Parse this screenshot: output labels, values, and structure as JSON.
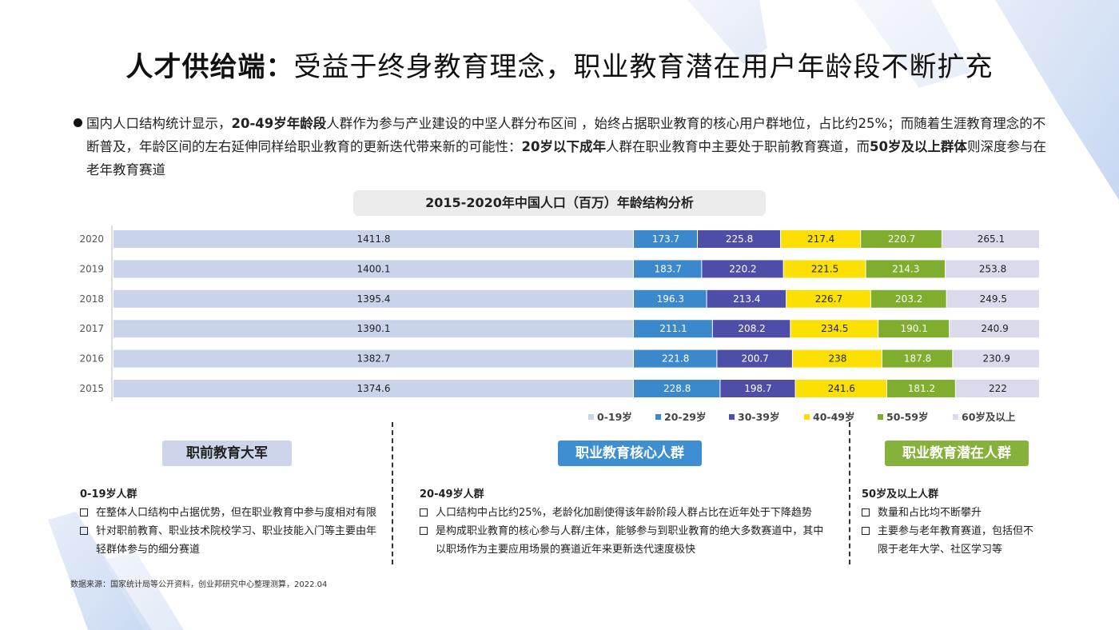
{
  "title": {
    "bold": "人才供给端：",
    "rest": "受益于终身教育理念，职业教育潜在用户年龄段不断扩充"
  },
  "intro": {
    "p1": "国内人口结构统计显示，",
    "b1": "20-49岁年龄段",
    "p2": "人群作为参与产业建设的中坚人群分布区间 ，始终占据职业教育的核心用户群地位，占比约25%；而随着生涯教育理念的不断普及，年龄区间的左右延伸同样给职业教育的更新迭代带来新的可能性：",
    "b2": "20岁以下成年",
    "p3": "人群在职业教育中主要处于职前教育赛道，而",
    "b3": "50岁及以上群体",
    "p4": "则深度参与在老年教育赛道"
  },
  "chart_data": {
    "type": "bar",
    "orientation": "horizontal",
    "stacked": true,
    "title": "2015-2020年中国人口（百万）年龄结构分析",
    "categories": [
      "2020",
      "2019",
      "2018",
      "2017",
      "2016",
      "2015"
    ],
    "series": [
      {
        "name": "0-19岁",
        "color": "#c9d3ea",
        "values": [
          1411.8,
          1400.1,
          1395.4,
          1390.1,
          1382.7,
          1374.6
        ]
      },
      {
        "name": "20-29岁",
        "color": "#3b88cc",
        "values": [
          173.7,
          183.7,
          196.3,
          211.1,
          221.8,
          228.8
        ]
      },
      {
        "name": "30-39岁",
        "color": "#4e4ea8",
        "values": [
          225.8,
          220.2,
          213.4,
          208.2,
          200.7,
          198.7
        ]
      },
      {
        "name": "40-49岁",
        "color": "#fde003",
        "values": [
          217.4,
          221.5,
          226.7,
          234.5,
          238,
          241.6
        ]
      },
      {
        "name": "50-59岁",
        "color": "#7fae2e",
        "values": [
          220.7,
          214.3,
          203.2,
          190.1,
          187.8,
          181.2
        ]
      },
      {
        "name": "60岁及以上",
        "color": "#dbdaec",
        "values": [
          265.1,
          253.8,
          249.5,
          240.9,
          230.9,
          222
        ]
      }
    ],
    "value_labels": [
      [
        "1411.8",
        "173.7",
        "225.8",
        "217.4",
        "220.7",
        "265.1"
      ],
      [
        "1400.1",
        "183.7",
        "220.2",
        "221.5",
        "214.3",
        "253.8"
      ],
      [
        "1395.4",
        "196.3",
        "213.4",
        "226.7",
        "203.2",
        "249.5"
      ],
      [
        "1390.1",
        "211.1",
        "208.2",
        "234.5",
        "190.1",
        "240.9"
      ],
      [
        "1382.7",
        "221.8",
        "200.7",
        "238",
        "187.8",
        "230.9"
      ],
      [
        "1374.6",
        "228.8",
        "198.7",
        "241.6",
        "181.2",
        "222"
      ]
    ],
    "legend_position": "bottom-right",
    "grid": false
  },
  "sections": [
    {
      "button": "职前教育大军",
      "heading": "0-19岁人群",
      "items": [
        "在整体人口结构中占据优势，但在职业教育中参与度相对有限",
        "针对职前教育、职业技术院校学习、职业技能入门等主要由年轻群体参与的细分赛道"
      ]
    },
    {
      "button": "职业教育核心人群",
      "heading": "20-49岁人群",
      "items": [
        "人口结构中占比约25%，老龄化加剧使得该年龄阶段人群占比在近年处于下降趋势",
        "是构成职业教育的核心参与人群/主体，能够参与到职业教育的绝大多数赛道中，其中以职场作为主要应用场景的赛道近年来更新迭代速度极快"
      ]
    },
    {
      "button": "职业教育潜在人群",
      "heading": "50岁及以上人群",
      "items": [
        "数量和占比均不断攀升",
        "主要参与老年教育赛道，包括但不限于老年大学、社区学习等"
      ]
    }
  ],
  "source": "数据来源：国家统计局等公开资料，创业邦研究中心整理测算，2022.04"
}
